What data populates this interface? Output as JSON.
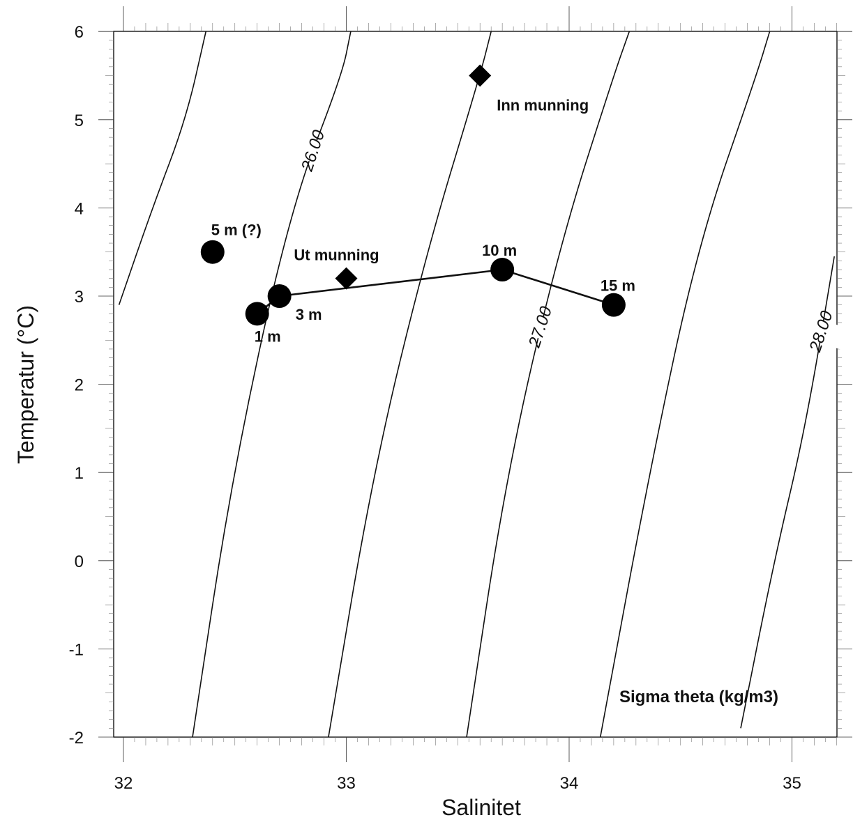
{
  "chart_data": {
    "type": "scatter",
    "title": "",
    "xlabel": "Salinitet",
    "ylabel": "Temperatur (°C)",
    "xlim": [
      31.97,
      35.2
    ],
    "ylim": [
      -2,
      6
    ],
    "x_ticks": [
      32,
      33,
      34,
      35
    ],
    "y_ticks": [
      -2,
      -1,
      0,
      1,
      2,
      3,
      4,
      5,
      6
    ],
    "grid": false,
    "contour_title": "Sigma theta (kg/m3)",
    "isopycnals": [
      {
        "sigma": 25.5,
        "points": [
          [
            31.98,
            2.9
          ],
          [
            32.13,
            4.0
          ],
          [
            32.28,
            5.0
          ],
          [
            32.37,
            6.0
          ]
        ],
        "label": ""
      },
      {
        "sigma": 26.0,
        "points": [
          [
            32.31,
            -2.0
          ],
          [
            32.49,
            1.0
          ],
          [
            32.75,
            4.0
          ],
          [
            32.98,
            5.5
          ],
          [
            33.02,
            6.0
          ]
        ],
        "label": "26.00",
        "label_at": [
          32.85,
          4.65
        ]
      },
      {
        "sigma": 26.5,
        "points": [
          [
            32.92,
            -2.0
          ],
          [
            33.12,
            1.0
          ],
          [
            33.36,
            3.5
          ],
          [
            33.6,
            5.5
          ],
          [
            33.65,
            6.0
          ]
        ],
        "label": ""
      },
      {
        "sigma": 27.0,
        "points": [
          [
            33.54,
            -2.0
          ],
          [
            33.72,
            1.0
          ],
          [
            33.96,
            3.6
          ],
          [
            34.2,
            5.5
          ],
          [
            34.27,
            6.0
          ]
        ],
        "label": "27.00",
        "label_at": [
          33.87,
          2.65
        ]
      },
      {
        "sigma": 27.5,
        "points": [
          [
            34.14,
            -2.0
          ],
          [
            34.36,
            1.0
          ],
          [
            34.58,
            3.6
          ],
          [
            34.84,
            5.5
          ],
          [
            34.9,
            6.0
          ]
        ],
        "label": ""
      },
      {
        "sigma": 28.0,
        "points": [
          [
            34.77,
            -1.9
          ],
          [
            34.92,
            0.0
          ],
          [
            35.06,
            1.5
          ],
          [
            35.19,
            3.45
          ]
        ],
        "label": "28.00",
        "label_at": [
          35.13,
          2.6
        ]
      }
    ],
    "series": [
      {
        "marker": "circle",
        "connected": true,
        "points": [
          {
            "x": 32.6,
            "y": 2.8,
            "label": "1 m"
          },
          {
            "x": 32.7,
            "y": 3.0,
            "label": "3 m"
          },
          {
            "x": 33.7,
            "y": 3.3,
            "label": "10 m"
          },
          {
            "x": 34.2,
            "y": 2.9,
            "label": "15 m"
          }
        ]
      },
      {
        "marker": "circle",
        "connected": false,
        "points": [
          {
            "x": 32.4,
            "y": 3.5,
            "label": "5 m (?)"
          }
        ]
      },
      {
        "marker": "diamond",
        "connected": false,
        "points": [
          {
            "x": 33.0,
            "y": 3.2,
            "label": "Ut munning"
          },
          {
            "x": 33.6,
            "y": 5.5,
            "label": "Inn munning"
          }
        ]
      }
    ]
  }
}
